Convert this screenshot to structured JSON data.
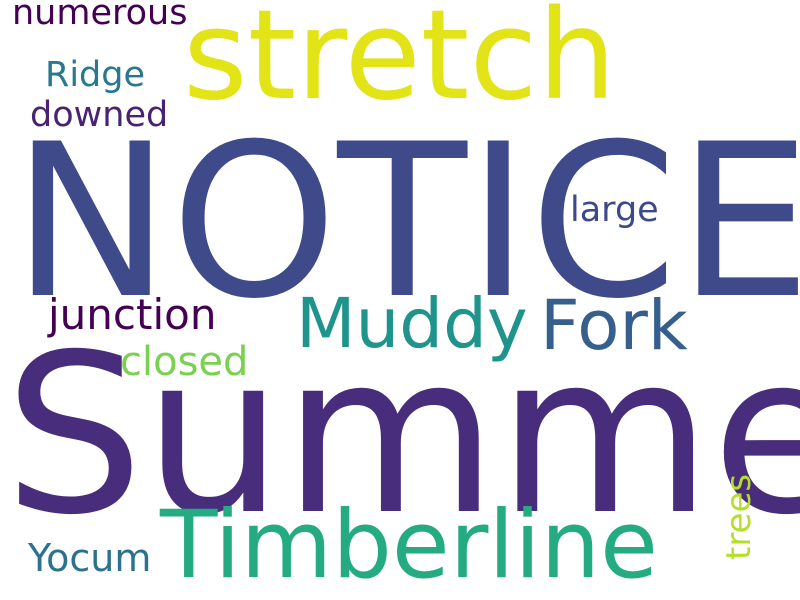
{
  "words": [
    {
      "text": "NOTICE",
      "color": "#3e4a89"
    },
    {
      "text": "Summer",
      "color": "#472d7b"
    },
    {
      "text": "stretch",
      "color": "#e2e418"
    },
    {
      "text": "Timberline",
      "color": "#25ab82"
    },
    {
      "text": "Muddy",
      "color": "#1f948c"
    },
    {
      "text": "Fork",
      "color": "#355f8d"
    },
    {
      "text": "junction",
      "color": "#440154"
    },
    {
      "text": "closed",
      "color": "#7ad151"
    },
    {
      "text": "large",
      "color": "#3e4989"
    },
    {
      "text": "Ridge",
      "color": "#2a788e"
    },
    {
      "text": "downed",
      "color": "#482374"
    },
    {
      "text": "numerous",
      "color": "#440154"
    },
    {
      "text": "Yocum",
      "color": "#2c728e"
    },
    {
      "text": "trees",
      "color": "#b5de2b"
    }
  ]
}
